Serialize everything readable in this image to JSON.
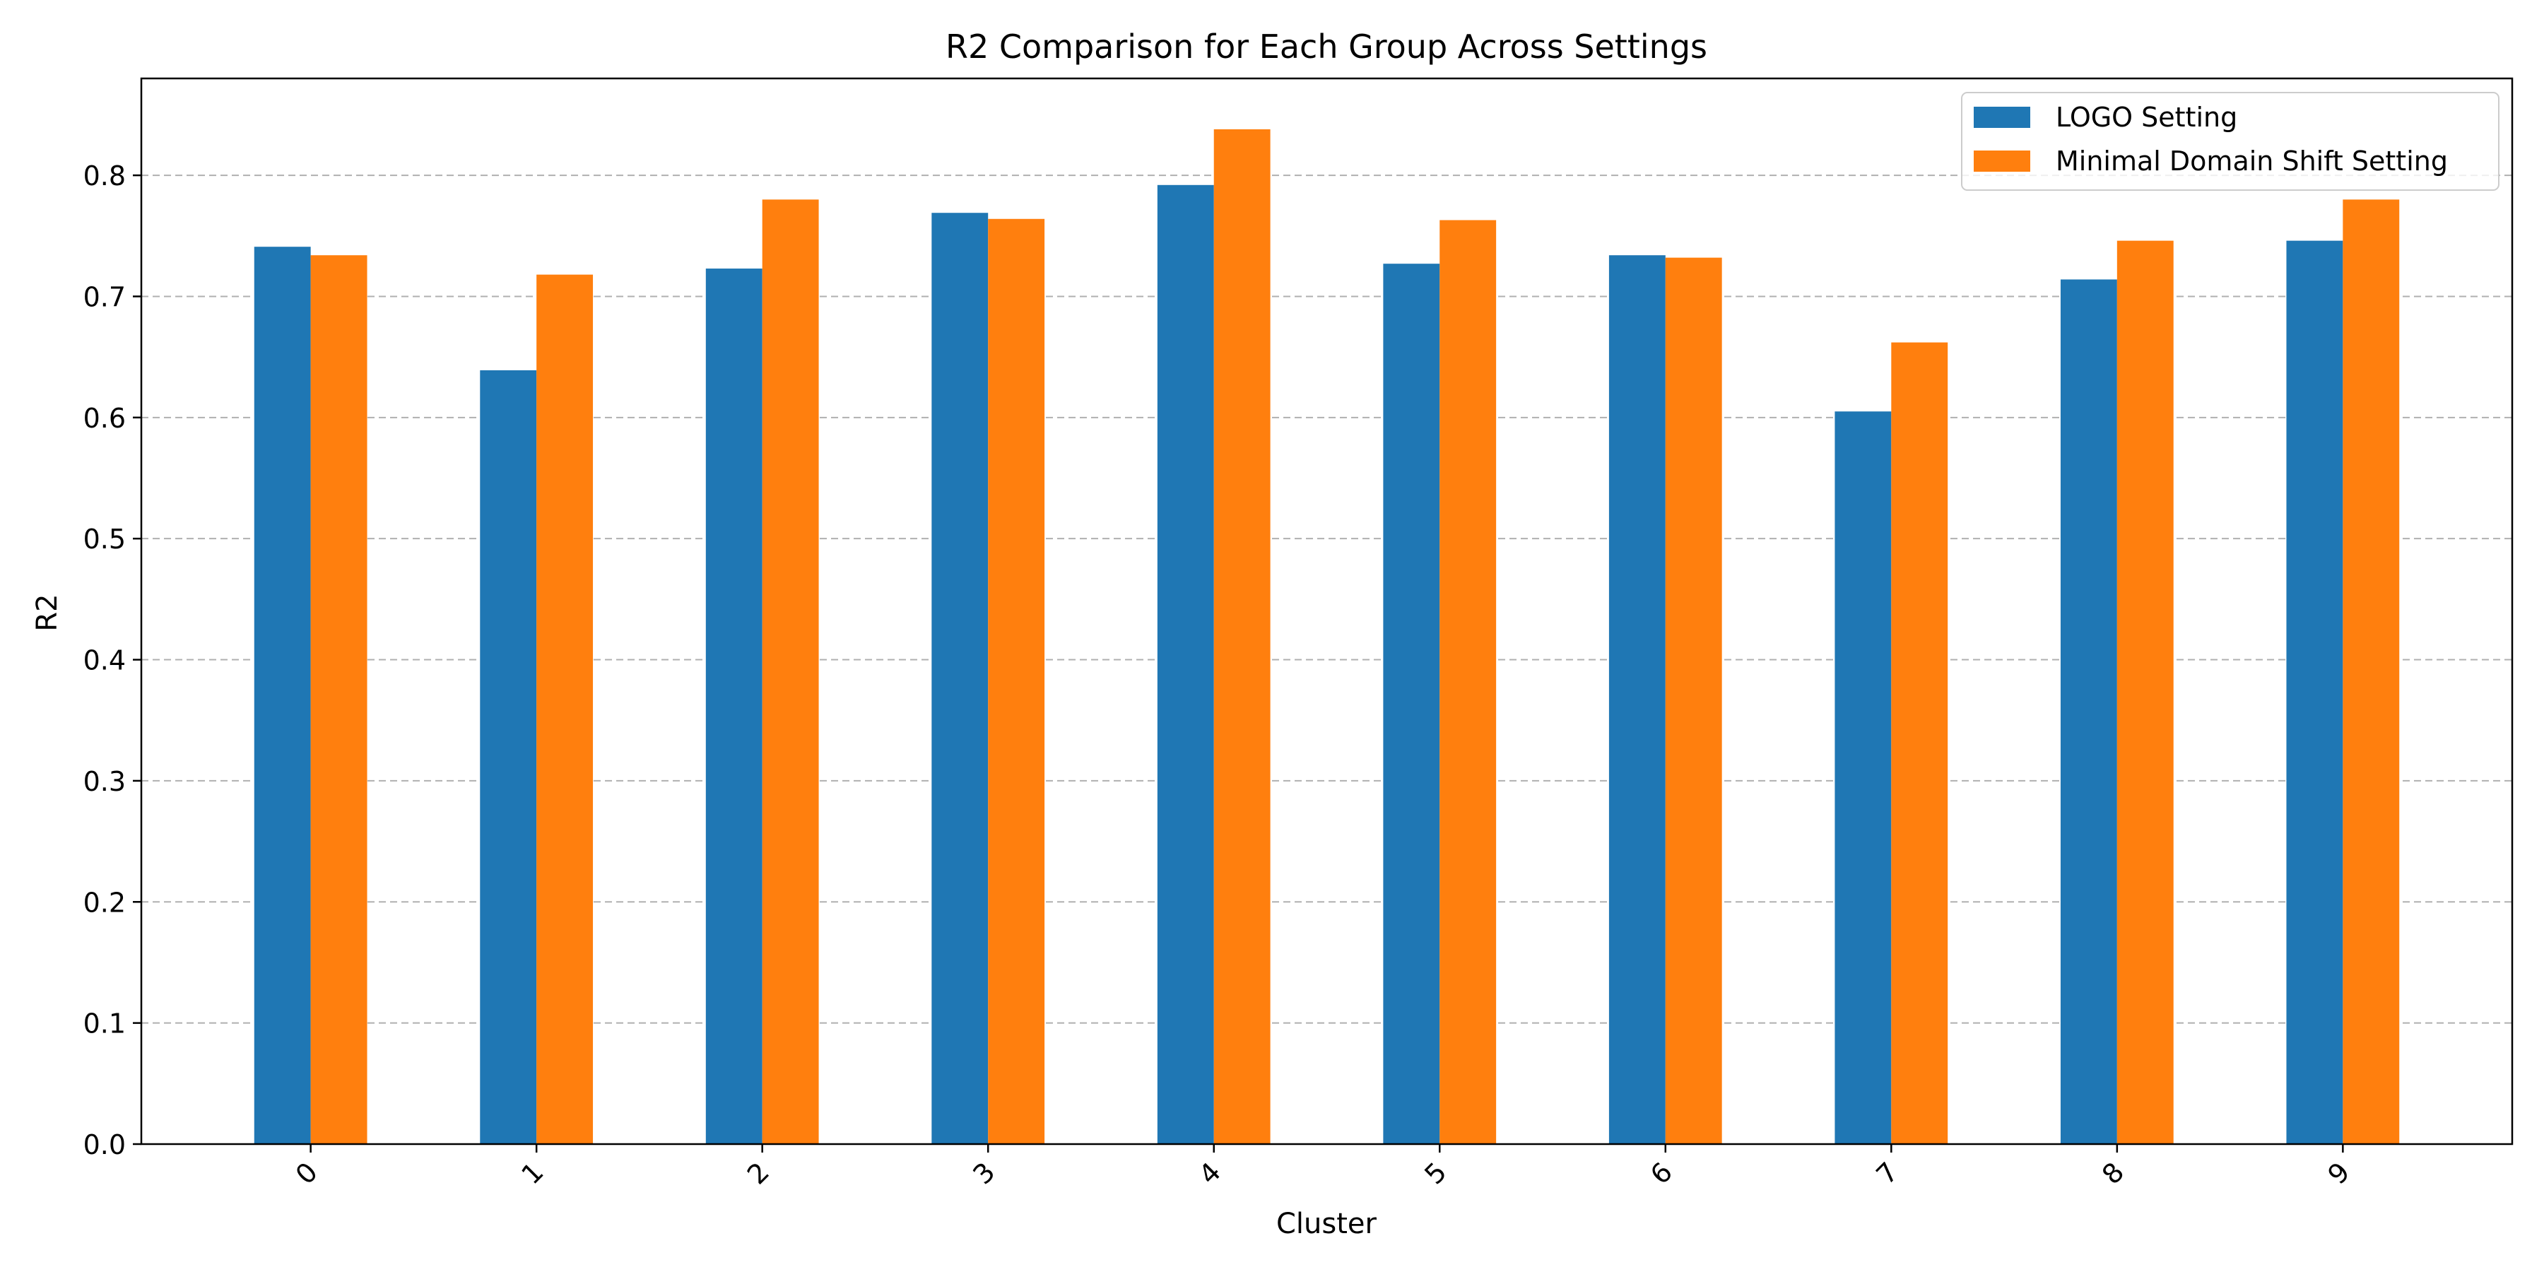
{
  "chart_data": {
    "type": "bar",
    "title": "R2 Comparison for Each Group Across Settings",
    "xlabel": "Cluster",
    "ylabel": "R2",
    "categories": [
      "0",
      "1",
      "2",
      "3",
      "4",
      "5",
      "6",
      "7",
      "8",
      "9"
    ],
    "ylim": [
      0,
      0.88
    ],
    "yticks": [
      "0.0",
      "0.1",
      "0.2",
      "0.3",
      "0.4",
      "0.5",
      "0.6",
      "0.7",
      "0.8"
    ],
    "grid": "y-dashed",
    "legend_position": "top-right",
    "series": [
      {
        "name": "LOGO Setting",
        "color": "#1f77b4",
        "values": [
          0.741,
          0.639,
          0.723,
          0.769,
          0.792,
          0.727,
          0.734,
          0.605,
          0.714,
          0.746
        ]
      },
      {
        "name": "Minimal Domain Shift Setting",
        "color": "#ff7f0e",
        "values": [
          0.734,
          0.718,
          0.78,
          0.764,
          0.838,
          0.763,
          0.732,
          0.662,
          0.746,
          0.78
        ]
      }
    ]
  }
}
